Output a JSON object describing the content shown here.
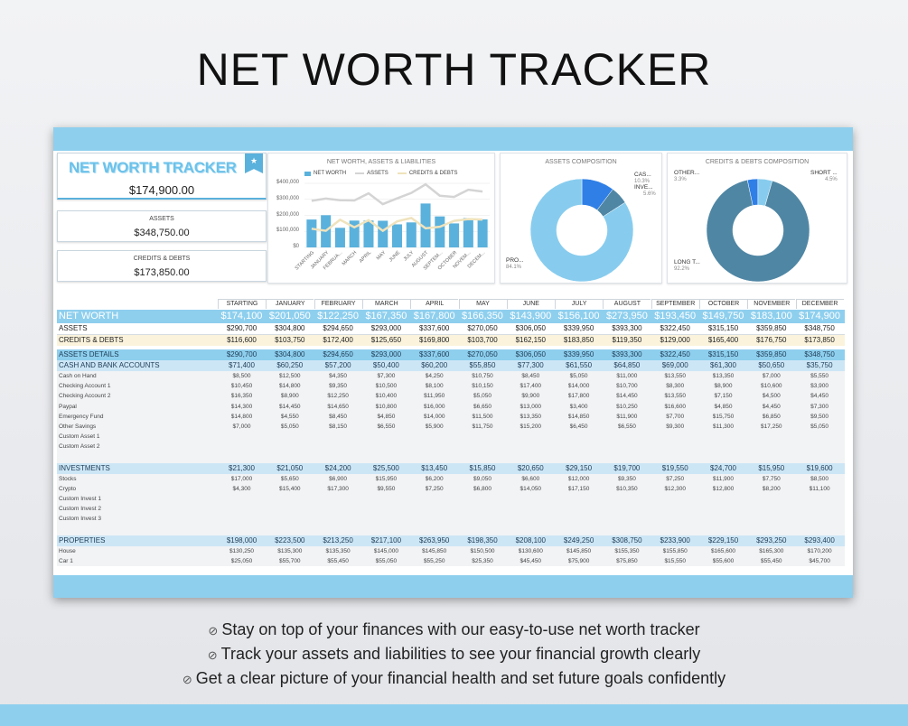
{
  "page_title": "NET WORTH TRACKER",
  "summary": {
    "brand": "NET WORTH TRACKER",
    "net_worth": "$174,900.00",
    "assets_label": "ASSETS",
    "assets_value": "$348,750.00",
    "debts_label": "CREDITS & DEBTS",
    "debts_value": "$173,850.00"
  },
  "colors": {
    "accent": "#8ecfee",
    "bar": "#5ab1dc",
    "assets_line": "#d4d4d4",
    "debts_line": "#efe3bd",
    "pie_light": "#87ccee",
    "pie_dark": "#4f86a4",
    "pie_blue": "#2f7fe6"
  },
  "chart_data": [
    {
      "type": "bar",
      "title": "NET WORTH, ASSETS & LIABILITIES",
      "categories": [
        "STARTING",
        "JANUARY",
        "FEBRUA...",
        "MARCH",
        "APRIL",
        "MAY",
        "JUNE",
        "JULY",
        "AUGUST",
        "SEPTEM...",
        "OCTOBER",
        "NOVEM...",
        "DECEM..."
      ],
      "ylim": [
        0,
        400000
      ],
      "yticks": [
        "$400,000",
        "$300,000",
        "$200,000",
        "$100,000",
        "$0"
      ],
      "grid": true,
      "legend": "top",
      "series": [
        {
          "name": "NET WORTH",
          "kind": "bar",
          "values": [
            174100,
            201050,
            122250,
            167350,
            167800,
            166350,
            143900,
            156100,
            273950,
            193450,
            149750,
            183100,
            174900
          ]
        },
        {
          "name": "ASSETS",
          "kind": "line",
          "values": [
            290700,
            304800,
            294650,
            293000,
            337600,
            270050,
            306050,
            339950,
            393300,
            322450,
            315150,
            359850,
            348750
          ]
        },
        {
          "name": "CREDITS & DEBTS",
          "kind": "line",
          "values": [
            116600,
            103750,
            172400,
            125650,
            169800,
            103700,
            162150,
            183850,
            119350,
            129000,
            165400,
            176750,
            173850
          ]
        }
      ]
    },
    {
      "type": "pie",
      "title": "ASSETS COMPOSITION",
      "labels": [
        "CAS...",
        "INVE...",
        "PRO..."
      ],
      "values": [
        10.3,
        5.6,
        84.1
      ],
      "percent_labels": [
        "10.3%",
        "5.6%",
        "84.1%"
      ]
    },
    {
      "type": "pie",
      "title": "CREDITS & DEBTS COMPOSITION",
      "labels": [
        "OTHER...",
        "SHORT ...",
        "LONG T..."
      ],
      "values": [
        3.3,
        4.5,
        92.2
      ],
      "percent_labels": [
        "3.3%",
        "4.5%",
        "92.2%"
      ]
    }
  ],
  "table": {
    "columns": [
      "STARTING",
      "JANUARY",
      "FEBRUARY",
      "MARCH",
      "APRIL",
      "MAY",
      "JUNE",
      "JULY",
      "AUGUST",
      "SEPTEMBER",
      "OCTOBER",
      "NOVEMBER",
      "DECEMBER"
    ],
    "rows": [
      {
        "kind": "networth",
        "name": "NET WORTH",
        "values": [
          "$174,100",
          "$201,050",
          "$122,250",
          "$167,350",
          "$167,800",
          "$166,350",
          "$143,900",
          "$156,100",
          "$273,950",
          "$193,450",
          "$149,750",
          "$183,100",
          "$174,900"
        ]
      },
      {
        "kind": "assets",
        "name": "ASSETS",
        "values": [
          "$290,700",
          "$304,800",
          "$294,650",
          "$293,000",
          "$337,600",
          "$270,050",
          "$306,050",
          "$339,950",
          "$393,300",
          "$322,450",
          "$315,150",
          "$359,850",
          "$348,750"
        ]
      },
      {
        "kind": "debts",
        "name": "CREDITS & DEBTS",
        "values": [
          "$116,600",
          "$103,750",
          "$172,400",
          "$125,650",
          "$169,800",
          "$103,700",
          "$162,150",
          "$183,850",
          "$119,350",
          "$129,000",
          "$165,400",
          "$176,750",
          "$173,850"
        ]
      },
      {
        "kind": "gap"
      },
      {
        "kind": "sec-dark",
        "name": "ASSETS DETAILS",
        "values": [
          "$290,700",
          "$304,800",
          "$294,650",
          "$293,000",
          "$337,600",
          "$270,050",
          "$306,050",
          "$339,950",
          "$393,300",
          "$322,450",
          "$315,150",
          "$359,850",
          "$348,750"
        ]
      },
      {
        "kind": "sec",
        "name": "CASH AND BANK ACCOUNTS",
        "values": [
          "$71,400",
          "$60,250",
          "$57,200",
          "$50,400",
          "$60,200",
          "$55,850",
          "$77,300",
          "$61,550",
          "$64,850",
          "$69,000",
          "$61,300",
          "$50,650",
          "$35,750"
        ]
      },
      {
        "kind": "item",
        "name": "Cash on Hand",
        "values": [
          "$8,500",
          "$12,500",
          "$4,350",
          "$7,300",
          "$4,250",
          "$10,750",
          "$8,450",
          "$5,050",
          "$11,000",
          "$13,550",
          "$13,350",
          "$7,000",
          "$5,550"
        ]
      },
      {
        "kind": "item",
        "name": "Checking Account 1",
        "values": [
          "$10,450",
          "$14,800",
          "$9,350",
          "$10,500",
          "$8,100",
          "$10,150",
          "$17,400",
          "$14,000",
          "$10,700",
          "$8,300",
          "$8,900",
          "$10,600",
          "$3,900"
        ]
      },
      {
        "kind": "item",
        "name": "Checking Account 2",
        "values": [
          "$16,350",
          "$8,900",
          "$12,250",
          "$10,400",
          "$11,950",
          "$5,050",
          "$9,900",
          "$17,800",
          "$14,450",
          "$13,550",
          "$7,150",
          "$4,500",
          "$4,450"
        ]
      },
      {
        "kind": "item",
        "name": "Paypal",
        "values": [
          "$14,300",
          "$14,450",
          "$14,650",
          "$10,800",
          "$16,000",
          "$6,650",
          "$13,000",
          "$3,400",
          "$10,250",
          "$16,600",
          "$4,850",
          "$4,450",
          "$7,300"
        ]
      },
      {
        "kind": "item",
        "name": "Emergency Fund",
        "values": [
          "$14,800",
          "$4,550",
          "$8,450",
          "$4,850",
          "$14,000",
          "$11,500",
          "$13,350",
          "$14,850",
          "$11,900",
          "$7,700",
          "$15,750",
          "$6,850",
          "$9,500"
        ]
      },
      {
        "kind": "item",
        "name": "Other Savings",
        "values": [
          "$7,000",
          "$5,050",
          "$8,150",
          "$6,550",
          "$5,900",
          "$11,750",
          "$15,200",
          "$6,450",
          "$6,550",
          "$9,300",
          "$11,300",
          "$17,250",
          "$5,050"
        ]
      },
      {
        "kind": "item",
        "name": "Custom Asset 1",
        "values": []
      },
      {
        "kind": "item",
        "name": "Custom Asset 2",
        "values": []
      },
      {
        "kind": "blank"
      },
      {
        "kind": "sec",
        "name": "INVESTMENTS",
        "values": [
          "$21,300",
          "$21,050",
          "$24,200",
          "$25,500",
          "$13,450",
          "$15,850",
          "$20,650",
          "$29,150",
          "$19,700",
          "$19,550",
          "$24,700",
          "$15,950",
          "$19,600"
        ]
      },
      {
        "kind": "item",
        "name": "Stocks",
        "values": [
          "$17,000",
          "$5,650",
          "$6,900",
          "$15,950",
          "$6,200",
          "$9,050",
          "$6,600",
          "$12,000",
          "$9,350",
          "$7,250",
          "$11,900",
          "$7,750",
          "$8,500"
        ]
      },
      {
        "kind": "item",
        "name": "Crypto",
        "values": [
          "$4,300",
          "$15,400",
          "$17,300",
          "$9,550",
          "$7,250",
          "$6,800",
          "$14,050",
          "$17,150",
          "$10,350",
          "$12,300",
          "$12,800",
          "$8,200",
          "$11,100"
        ]
      },
      {
        "kind": "item",
        "name": "Custom Invest 1",
        "values": []
      },
      {
        "kind": "item",
        "name": "Custom Invest 2",
        "values": []
      },
      {
        "kind": "item",
        "name": "Custom Invest 3",
        "values": []
      },
      {
        "kind": "blank"
      },
      {
        "kind": "sec",
        "name": "PROPERTIES",
        "values": [
          "$198,000",
          "$223,500",
          "$213,250",
          "$217,100",
          "$263,950",
          "$198,350",
          "$208,100",
          "$249,250",
          "$308,750",
          "$233,900",
          "$229,150",
          "$293,250",
          "$293,400"
        ]
      },
      {
        "kind": "item",
        "name": "House",
        "values": [
          "$130,250",
          "$135,300",
          "$135,350",
          "$145,000",
          "$145,850",
          "$150,500",
          "$130,600",
          "$145,850",
          "$155,350",
          "$155,850",
          "$165,600",
          "$165,300",
          "$170,200"
        ]
      },
      {
        "kind": "item",
        "name": "Car 1",
        "values": [
          "$25,050",
          "$55,700",
          "$55,450",
          "$55,050",
          "$55,250",
          "$25,350",
          "$45,450",
          "$75,900",
          "$75,850",
          "$15,550",
          "$55,600",
          "$55,450",
          "$45,700"
        ]
      }
    ]
  },
  "bullets": [
    "Stay on top of your finances with our easy-to-use net worth tracker",
    "Track your assets and liabilities to see your financial growth clearly",
    "Get a clear picture of your financial health and set future goals confidently"
  ]
}
